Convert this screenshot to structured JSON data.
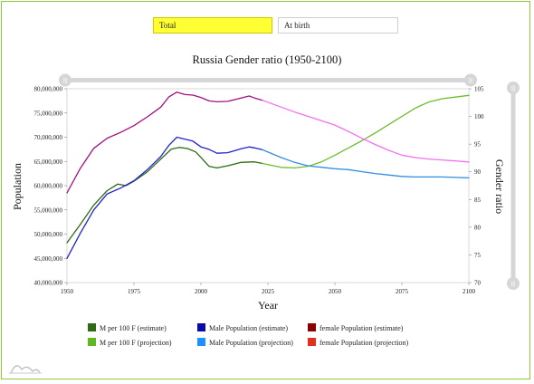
{
  "toggles": {
    "total": "Total",
    "at_birth": "At birth"
  },
  "chart_data": {
    "type": "line",
    "title": "Russia Gender ratio (1950-2100)",
    "xlabel": "Year",
    "ylabel_left": "Population",
    "ylabel_right": "Gender ratio",
    "xlim": [
      1950,
      2100
    ],
    "ylim_left": [
      40000000,
      80000000
    ],
    "ylim_right": [
      70,
      105
    ],
    "x_ticks": [
      "1950",
      "1975",
      "2000",
      "2025",
      "2050",
      "2075",
      "2100"
    ],
    "y_left_ticks": [
      "80,000,000",
      "75,000,000",
      "70,000,000",
      "65,000,000",
      "60,000,000",
      "55,000,000",
      "50,000,000",
      "45,000,000",
      "40,000,000"
    ],
    "y_right_ticks": [
      "105",
      "100",
      "95",
      "90",
      "85",
      "80",
      "75",
      "70"
    ],
    "colors": {
      "m_per_100f_estimate": "#2e6b12",
      "m_per_100f_projection": "#6cbd2a",
      "male_estimate": "#2222cc",
      "male_projection": "#2e8fe0",
      "female_estimate": "#a01080",
      "female_projection": "#f070f0"
    },
    "series": [
      {
        "name": "M per 100 F (estimate)",
        "axis": "right",
        "x": [
          1950,
          1955,
          1960,
          1965,
          1969,
          1972,
          1975,
          1980,
          1985,
          1989,
          1992,
          1995,
          1998,
          2000,
          2003,
          2006,
          2010,
          2015,
          2020,
          2023
        ],
        "y": [
          77.2,
          80.5,
          84.0,
          86.6,
          87.8,
          87.5,
          88.3,
          90.0,
          92.3,
          94.1,
          94.4,
          94.2,
          93.6,
          92.6,
          91.0,
          90.7,
          91.1,
          91.7,
          91.8,
          91.5
        ]
      },
      {
        "name": "M per 100 F (projection)",
        "axis": "right",
        "x": [
          2023,
          2030,
          2035,
          2040,
          2045,
          2050,
          2055,
          2060,
          2065,
          2070,
          2075,
          2080,
          2085,
          2090,
          2095,
          2100
        ],
        "y": [
          91.5,
          90.8,
          90.7,
          91.0,
          91.8,
          93.0,
          94.3,
          95.6,
          97.0,
          98.5,
          100.0,
          101.5,
          102.6,
          103.2,
          103.5,
          103.8
        ]
      },
      {
        "name": "Male Population (estimate)",
        "axis": "left",
        "x": [
          1950,
          1955,
          1960,
          1965,
          1970,
          1975,
          1980,
          1985,
          1988,
          1991,
          1994,
          1997,
          2000,
          2003,
          2006,
          2010,
          2015,
          2018,
          2020,
          2023
        ],
        "y": [
          45000000,
          50200000,
          55000000,
          58300000,
          59500000,
          61000000,
          63300000,
          66000000,
          68300000,
          70000000,
          69600000,
          69200000,
          68000000,
          67500000,
          66700000,
          66800000,
          67600000,
          68000000,
          67800000,
          67400000
        ]
      },
      {
        "name": "Male Population (projection)",
        "axis": "left",
        "x": [
          2023,
          2030,
          2035,
          2040,
          2045,
          2050,
          2055,
          2060,
          2065,
          2070,
          2075,
          2080,
          2085,
          2090,
          2095,
          2100
        ],
        "y": [
          67400000,
          65800000,
          64800000,
          64100000,
          63800000,
          63500000,
          63300000,
          62900000,
          62500000,
          62200000,
          61900000,
          61800000,
          61800000,
          61800000,
          61700000,
          61600000
        ]
      },
      {
        "name": "female Population (estimate)",
        "axis": "left",
        "x": [
          1950,
          1955,
          1960,
          1965,
          1970,
          1975,
          1980,
          1985,
          1988,
          1991,
          1994,
          1997,
          2000,
          2003,
          2006,
          2010,
          2015,
          2018,
          2020,
          2023
        ],
        "y": [
          58500000,
          63600000,
          67700000,
          69800000,
          71000000,
          72400000,
          74200000,
          76200000,
          78300000,
          79300000,
          78800000,
          78700000,
          78200000,
          77500000,
          77300000,
          77400000,
          78100000,
          78500000,
          78100000,
          77600000
        ]
      },
      {
        "name": "female Population (projection)",
        "axis": "left",
        "x": [
          2023,
          2030,
          2035,
          2040,
          2045,
          2050,
          2055,
          2060,
          2065,
          2070,
          2075,
          2080,
          2085,
          2090,
          2095,
          2100
        ],
        "y": [
          77600000,
          76200000,
          75200000,
          74300000,
          73400000,
          72500000,
          71200000,
          69800000,
          68500000,
          67300000,
          66300000,
          65800000,
          65500000,
          65300000,
          65100000,
          64900000
        ]
      }
    ],
    "legend": [
      {
        "key": "m_per_100f_estimate",
        "label": "M per 100 F (estimate)",
        "color": "#2e6b12"
      },
      {
        "key": "male_estimate",
        "label": "Male Population (estimate)",
        "color": "#0a0aa8"
      },
      {
        "key": "female_estimate_legend",
        "label": "female Population (estimate)",
        "color": "#8b0000"
      },
      {
        "key": "m_per_100f_projection",
        "label": "M per 100 F (projection)",
        "color": "#5fb820"
      },
      {
        "key": "male_projection",
        "label": "Male Population (projection)",
        "color": "#1e90ff"
      },
      {
        "key": "female_projection_legend",
        "label": "female Population (projection)",
        "color": "#e0301e"
      }
    ]
  }
}
